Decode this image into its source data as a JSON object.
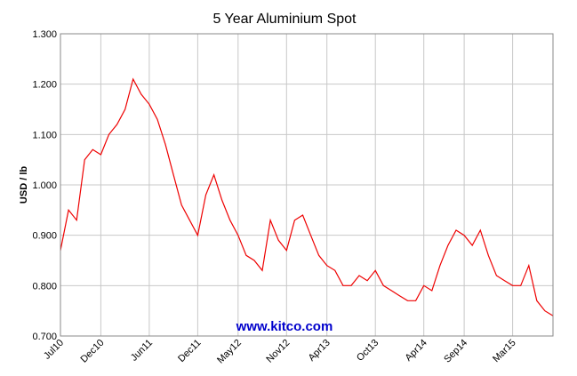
{
  "chart_data": {
    "type": "line",
    "title": "5 Year Aluminium Spot",
    "y_label": "USD / lb",
    "annotation": "www.kitco.com",
    "x": [
      "2010-07",
      "2010-08",
      "2010-09",
      "2010-10",
      "2010-11",
      "2010-12",
      "2011-01",
      "2011-02",
      "2011-03",
      "2011-04",
      "2011-05",
      "2011-06",
      "2011-07",
      "2011-08",
      "2011-09",
      "2011-10",
      "2011-11",
      "2011-12",
      "2012-01",
      "2012-02",
      "2012-03",
      "2012-04",
      "2012-05",
      "2012-06",
      "2012-07",
      "2012-08",
      "2012-09",
      "2012-10",
      "2012-11",
      "2012-12",
      "2013-01",
      "2013-02",
      "2013-03",
      "2013-04",
      "2013-05",
      "2013-06",
      "2013-07",
      "2013-08",
      "2013-09",
      "2013-10",
      "2013-11",
      "2013-12",
      "2014-01",
      "2014-02",
      "2014-03",
      "2014-04",
      "2014-05",
      "2014-06",
      "2014-07",
      "2014-08",
      "2014-09",
      "2014-10",
      "2014-11",
      "2014-12",
      "2015-01",
      "2015-02",
      "2015-03",
      "2015-04",
      "2015-05",
      "2015-06",
      "2015-07",
      "2015-08"
    ],
    "series": [
      {
        "name": "Aluminium",
        "color": "#ee0000",
        "values": [
          0.87,
          0.95,
          0.93,
          1.05,
          1.07,
          1.06,
          1.1,
          1.12,
          1.15,
          1.21,
          1.18,
          1.16,
          1.13,
          1.08,
          1.02,
          0.96,
          0.93,
          0.9,
          0.98,
          1.02,
          0.97,
          0.93,
          0.9,
          0.86,
          0.85,
          0.83,
          0.93,
          0.89,
          0.87,
          0.93,
          0.94,
          0.9,
          0.86,
          0.84,
          0.83,
          0.8,
          0.8,
          0.82,
          0.81,
          0.83,
          0.8,
          0.79,
          0.78,
          0.77,
          0.77,
          0.8,
          0.79,
          0.84,
          0.88,
          0.91,
          0.9,
          0.88,
          0.91,
          0.86,
          0.82,
          0.81,
          0.8,
          0.8,
          0.84,
          0.77,
          0.75,
          0.74
        ]
      }
    ],
    "xlim": [
      "2010-07",
      "2015-08"
    ],
    "xticks": [
      {
        "value": "2010-07",
        "label": "Jul10"
      },
      {
        "value": "2010-12",
        "label": "Dec10"
      },
      {
        "value": "2011-06",
        "label": "Jun11"
      },
      {
        "value": "2011-12",
        "label": "Dec11"
      },
      {
        "value": "2012-05",
        "label": "May12"
      },
      {
        "value": "2012-11",
        "label": "Nov12"
      },
      {
        "value": "2013-04",
        "label": "Apr13"
      },
      {
        "value": "2013-10",
        "label": "Oct13"
      },
      {
        "value": "2014-04",
        "label": "Apr14"
      },
      {
        "value": "2014-09",
        "label": "Sep14"
      },
      {
        "value": "2015-03",
        "label": "Mar15"
      }
    ],
    "ylim": [
      0.7,
      1.3
    ],
    "yticks": [
      {
        "value": 0.7,
        "label": "0.700"
      },
      {
        "value": 0.8,
        "label": "0.800"
      },
      {
        "value": 0.9,
        "label": "0.900"
      },
      {
        "value": 1.0,
        "label": "1.000"
      },
      {
        "value": 1.1,
        "label": "1.100"
      },
      {
        "value": 1.2,
        "label": "1.200"
      },
      {
        "value": 1.3,
        "label": "1.300"
      }
    ],
    "grid": true
  }
}
